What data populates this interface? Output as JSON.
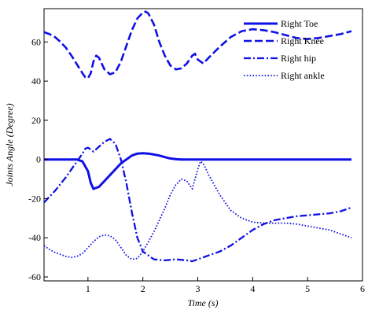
{
  "chart_data": {
    "type": "line",
    "title": "",
    "xlabel": "Time (s)",
    "ylabel": "Joints Angle (Degree)",
    "xlim": [
      0.2,
      6
    ],
    "ylim": [
      -62,
      77
    ],
    "xticks": [
      1,
      2,
      3,
      4,
      5,
      6
    ],
    "yticks": [
      -60,
      -40,
      -20,
      0,
      20,
      40,
      60
    ],
    "grid": false,
    "legend_position": "top-right",
    "color": "#1010e6",
    "series": [
      {
        "name": "Right Toe",
        "style": "solid",
        "x": [
          0.2,
          0.5,
          0.8,
          0.9,
          1.0,
          1.05,
          1.1,
          1.2,
          1.3,
          1.4,
          1.5,
          1.6,
          1.7,
          1.8,
          1.9,
          2.0,
          2.1,
          2.2,
          2.3,
          2.4,
          2.5,
          2.6,
          2.7,
          3.0,
          4.0,
          5.0,
          5.8
        ],
        "y": [
          0,
          0,
          0,
          -1,
          -6,
          -12,
          -15,
          -14,
          -11,
          -8,
          -5,
          -2,
          0,
          2,
          3,
          3.2,
          3,
          2.5,
          2,
          1.2,
          0.5,
          0.2,
          0,
          0,
          0,
          0,
          0
        ]
      },
      {
        "name": "Right Knee",
        "style": "dashed",
        "x": [
          0.2,
          0.3,
          0.4,
          0.5,
          0.6,
          0.7,
          0.8,
          0.9,
          0.95,
          1.0,
          1.05,
          1.1,
          1.15,
          1.2,
          1.3,
          1.4,
          1.5,
          1.6,
          1.7,
          1.8,
          1.9,
          2.0,
          2.05,
          2.1,
          2.2,
          2.3,
          2.4,
          2.5,
          2.6,
          2.7,
          2.8,
          2.9,
          2.95,
          3.0,
          3.1,
          3.2,
          3.4,
          3.6,
          3.8,
          4.0,
          4.2,
          4.4,
          4.6,
          4.8,
          5.0,
          5.2,
          5.4,
          5.6,
          5.8
        ],
        "y": [
          65,
          64,
          62.5,
          60,
          57,
          53,
          48.5,
          44,
          42,
          41.5,
          44,
          50,
          53,
          52,
          46,
          43.5,
          44.5,
          50,
          58,
          66,
          72,
          75,
          75.5,
          74.5,
          69,
          60,
          53,
          48,
          46,
          46.5,
          49,
          53,
          54,
          51,
          49,
          52,
          57.5,
          62.5,
          65.5,
          66.5,
          66,
          65,
          63.5,
          62,
          61.5,
          62,
          63,
          64,
          65.5
        ]
      },
      {
        "name": "Right hip",
        "style": "dashdot",
        "x": [
          0.2,
          0.4,
          0.6,
          0.8,
          0.9,
          0.95,
          1.0,
          1.05,
          1.1,
          1.2,
          1.3,
          1.4,
          1.5,
          1.6,
          1.7,
          1.8,
          1.9,
          2.0,
          2.2,
          2.4,
          2.6,
          2.8,
          2.9,
          3.0,
          3.2,
          3.4,
          3.6,
          3.8,
          4.0,
          4.2,
          4.4,
          4.6,
          4.8,
          5.0,
          5.2,
          5.4,
          5.6,
          5.8
        ],
        "y": [
          -22,
          -16,
          -9,
          -1,
          3,
          5.5,
          6,
          5,
          4,
          6.5,
          9,
          10.5,
          8,
          0,
          -12,
          -27,
          -40,
          -47,
          -51,
          -51.5,
          -51,
          -51.5,
          -52,
          -51,
          -49,
          -47,
          -44,
          -40,
          -36,
          -33,
          -31,
          -30,
          -29,
          -28.5,
          -28,
          -27.5,
          -26.5,
          -24.5
        ]
      },
      {
        "name": "Right ankle",
        "style": "dotted",
        "x": [
          0.2,
          0.3,
          0.4,
          0.5,
          0.6,
          0.7,
          0.8,
          0.9,
          1.0,
          1.1,
          1.2,
          1.3,
          1.4,
          1.5,
          1.6,
          1.7,
          1.8,
          1.9,
          2.0,
          2.2,
          2.4,
          2.5,
          2.6,
          2.7,
          2.8,
          2.9,
          3.0,
          3.05,
          3.1,
          3.2,
          3.4,
          3.6,
          3.8,
          4.0,
          4.2,
          4.4,
          4.6,
          4.8,
          5.0,
          5.2,
          5.4,
          5.6,
          5.8
        ],
        "y": [
          -44,
          -46,
          -47.5,
          -48.5,
          -49.5,
          -50,
          -49.5,
          -48,
          -45,
          -42,
          -39.5,
          -38.5,
          -39,
          -41,
          -45,
          -49,
          -51,
          -50.5,
          -47,
          -37,
          -25,
          -18,
          -13,
          -10,
          -11,
          -15,
          -5,
          -1,
          -2,
          -8,
          -18,
          -26,
          -30,
          -32,
          -32.5,
          -32.5,
          -32.5,
          -33,
          -34,
          -35,
          -36,
          -38,
          -40
        ]
      }
    ]
  }
}
